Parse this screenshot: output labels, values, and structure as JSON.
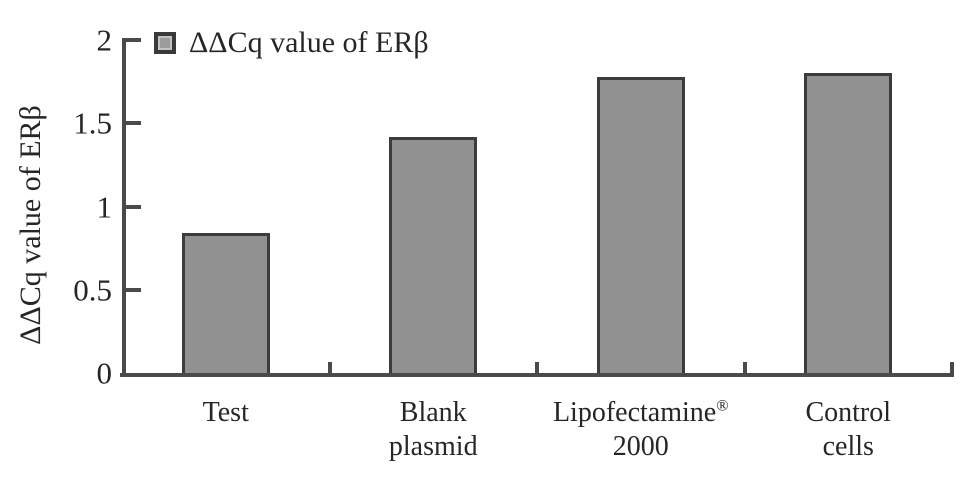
{
  "chart_data": {
    "type": "bar",
    "categories": [
      "Test",
      "Blank\nplasmid",
      "Lipofectamine®\n2000",
      "Control\ncells"
    ],
    "values": [
      0.84,
      1.42,
      1.78,
      1.8
    ],
    "title": "",
    "xlabel": "",
    "ylabel": "ΔΔCq value of ERβ",
    "ylim": [
      0,
      2
    ],
    "yticks": [
      0,
      0.5,
      1,
      1.5,
      2
    ],
    "legend": [
      "ΔΔCq value of ERβ"
    ],
    "legend_position": "top-left",
    "grid": false,
    "bar_fill_color": "#919191",
    "bar_border_color": "#3c3c3c",
    "axis_color": "#4a4a4a",
    "text_color": "#262626"
  }
}
